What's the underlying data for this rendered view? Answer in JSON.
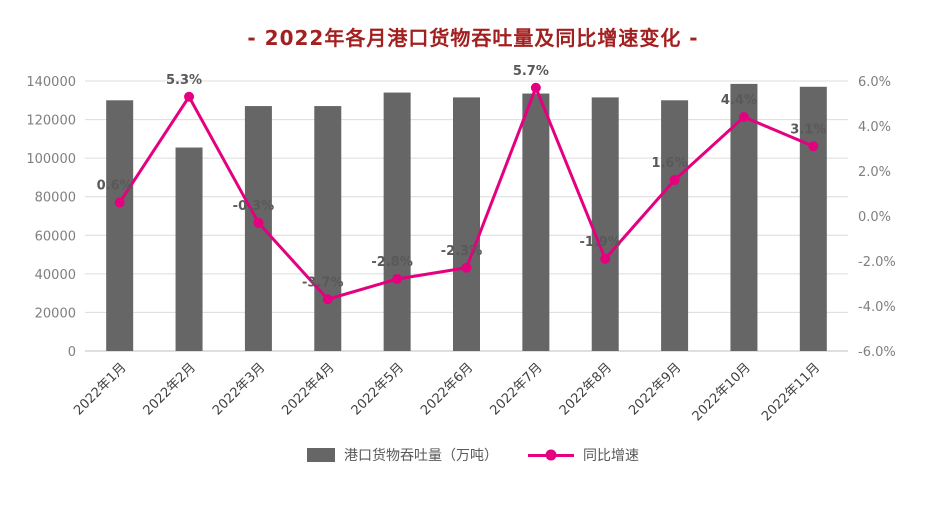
{
  "title": "- 2022年各月港口货物吞吐量及同比增速变化 -",
  "chart_data": {
    "type": "combo",
    "categories": [
      "2022年1月",
      "2022年2月",
      "2022年3月",
      "2022年4月",
      "2022年5月",
      "2022年6月",
      "2022年7月",
      "2022年8月",
      "2022年9月",
      "2022年10月",
      "2022年11月"
    ],
    "series": [
      {
        "name": "港口货物吞吐量（万吨）",
        "type": "bar",
        "axis": "left",
        "color": "#666666",
        "values": [
          130000,
          105500,
          127000,
          127000,
          134000,
          131500,
          133500,
          131500,
          130000,
          138500,
          137000
        ]
      },
      {
        "name": "同比增速",
        "type": "line",
        "axis": "right",
        "color": "#e4007f",
        "values": [
          0.6,
          5.3,
          -0.3,
          -3.7,
          -2.8,
          -2.3,
          5.7,
          -1.9,
          1.6,
          4.4,
          3.1
        ],
        "point_labels": [
          "0.6%",
          "5.3%",
          "-0.3%",
          "-3.7%",
          "-2.8%",
          "-2.3%",
          "5.7%",
          "-1.9%",
          "1.6%",
          "4.4%",
          "3.1%"
        ]
      }
    ],
    "left_axis": {
      "min": 0,
      "max": 140000,
      "step": 20000,
      "tick_labels": [
        "140000",
        "120000",
        "100000",
        "80000",
        "60000",
        "40000",
        "20000",
        "0"
      ]
    },
    "right_axis": {
      "min": -6,
      "max": 6,
      "step": 2,
      "tick_labels": [
        "6.0%",
        "4.0%",
        "2.0%",
        "0.0%",
        "-2.0%",
        "-4.0%",
        "-6.0%"
      ]
    },
    "grid": true,
    "legend_position": "bottom"
  },
  "colors": {
    "title": "#a32020",
    "bar": "#666666",
    "line": "#e4007f",
    "grid": "#dcdcdc",
    "axis_text": "#7f7f7f",
    "label_text": "#595959",
    "background": "#ffffff"
  }
}
